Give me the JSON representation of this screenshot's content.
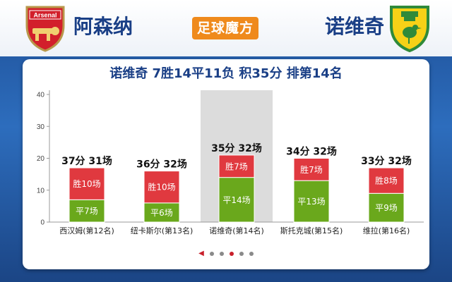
{
  "header": {
    "home_team": "阿森纳",
    "away_team": "诺维奇",
    "brand": "足球魔方",
    "home_badge_text": "Arsenal"
  },
  "colors": {
    "win": "#e0393f",
    "draw": "#6aa81c",
    "highlight_bg": "#dcdcdc",
    "title": "#1a3f86",
    "brand": "#ef8a1c"
  },
  "pager": {
    "count": 5,
    "active": 2
  },
  "chart_data": {
    "type": "bar",
    "stacked": true,
    "title": "诺维奇 7胜14平11负 积35分 排第14名",
    "xlabel": "",
    "ylabel": "",
    "ylim": [
      0,
      40
    ],
    "yticks": [
      0,
      10,
      20,
      30,
      40
    ],
    "grid": false,
    "legend": "none",
    "highlight_index": 2,
    "categories": [
      "西汉姆(第12名)",
      "纽卡斯尔(第13名)",
      "诺维奇(第14名)",
      "斯托克城(第15名)",
      "维拉(第16名)"
    ],
    "series": [
      {
        "key": "draw",
        "values": [
          7,
          6,
          14,
          13,
          9
        ],
        "labels": [
          "平7场",
          "平6场",
          "平14场",
          "平13场",
          "平9场"
        ]
      },
      {
        "key": "win",
        "values": [
          10,
          10,
          7,
          7,
          8
        ],
        "labels": [
          "胜10场",
          "胜10场",
          "胜7场",
          "胜7场",
          "胜8场"
        ]
      }
    ],
    "points": [
      37,
      36,
      35,
      34,
      33
    ],
    "top_labels": [
      "37分 31场",
      "36分 32场",
      "35分 32场",
      "34分 32场",
      "33分 32场"
    ]
  }
}
